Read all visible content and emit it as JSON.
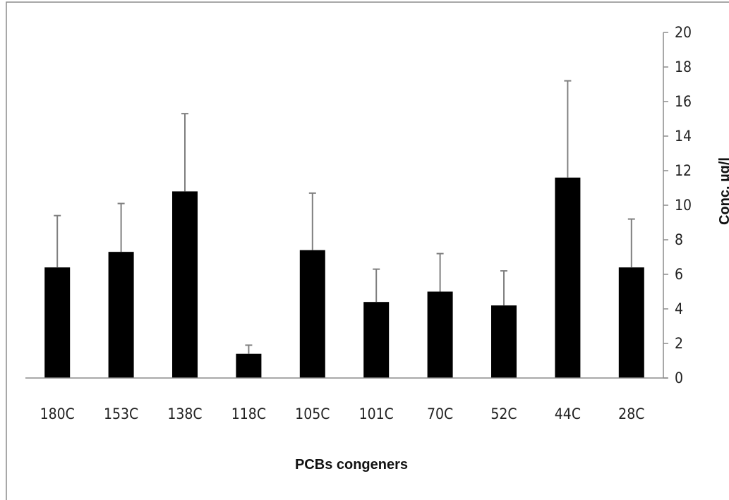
{
  "chart_data": {
    "type": "bar",
    "categories": [
      "180C",
      "153C",
      "138C",
      "118C",
      "105C",
      "101C",
      "70C",
      "52C",
      "44C",
      "28C"
    ],
    "values": [
      6.4,
      7.3,
      10.8,
      1.4,
      7.4,
      4.4,
      5.0,
      4.2,
      11.6,
      6.4
    ],
    "error_plus": [
      3.0,
      2.8,
      4.5,
      0.5,
      3.3,
      1.9,
      2.2,
      2.0,
      5.6,
      2.8
    ],
    "xlabel": "PCBs congeners",
    "ylabel": "Conc. µg/l",
    "ylim": [
      0,
      20
    ],
    "yticks": [
      0,
      2,
      4,
      6,
      8,
      10,
      12,
      14,
      16,
      18,
      20
    ],
    "y_axis_side": "right",
    "grid": false,
    "legend": "none",
    "colors": {
      "bar": "#000000",
      "error_bar": "#7f7f7f",
      "axis": "#8c8c8c",
      "frame": "#8c8c8c"
    }
  }
}
